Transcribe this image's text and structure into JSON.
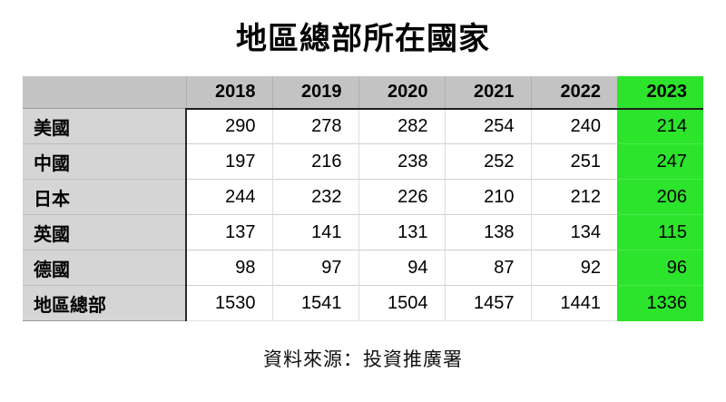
{
  "page": {
    "title": "地區總部所在國家",
    "source": "資料來源：投資推廣署"
  },
  "colors": {
    "header_bg": "#c3c3c3",
    "row_label_bg": "#d5d5d5",
    "highlight_2023": "#2ce42c",
    "header_underline": "#1f1f1f",
    "text": "#000000"
  },
  "table": {
    "header": {
      "corner": "",
      "years": [
        "2018",
        "2019",
        "2020",
        "2021",
        "2022",
        "2023"
      ]
    },
    "rows": [
      {
        "label": "美國",
        "values": [
          "290",
          "278",
          "282",
          "254",
          "240",
          "214"
        ]
      },
      {
        "label": "中國",
        "values": [
          "197",
          "216",
          "238",
          "252",
          "251",
          "247"
        ]
      },
      {
        "label": "日本",
        "values": [
          "244",
          "232",
          "226",
          "210",
          "212",
          "206"
        ]
      },
      {
        "label": "英國",
        "values": [
          "137",
          "141",
          "131",
          "138",
          "134",
          "115"
        ]
      },
      {
        "label": "德國",
        "values": [
          "98",
          "97",
          "94",
          "87",
          "92",
          "96"
        ]
      },
      {
        "label": "地區總部",
        "values": [
          "1530",
          "1541",
          "1504",
          "1457",
          "1441",
          "1336"
        ]
      }
    ]
  },
  "chart_data": {
    "type": "table",
    "title": "地區總部所在國家",
    "columns": [
      "",
      "2018",
      "2019",
      "2020",
      "2021",
      "2022",
      "2023"
    ],
    "rows": [
      [
        "美國",
        290,
        278,
        282,
        254,
        240,
        214
      ],
      [
        "中國",
        197,
        216,
        238,
        252,
        251,
        247
      ],
      [
        "日本",
        244,
        232,
        226,
        210,
        212,
        206
      ],
      [
        "英國",
        137,
        141,
        131,
        138,
        134,
        115
      ],
      [
        "德國",
        98,
        97,
        94,
        87,
        92,
        96
      ],
      [
        "地區總部",
        1530,
        1541,
        1504,
        1457,
        1441,
        1336
      ]
    ],
    "highlighted_column": "2023",
    "source": "資料來源：投資推廣署"
  }
}
